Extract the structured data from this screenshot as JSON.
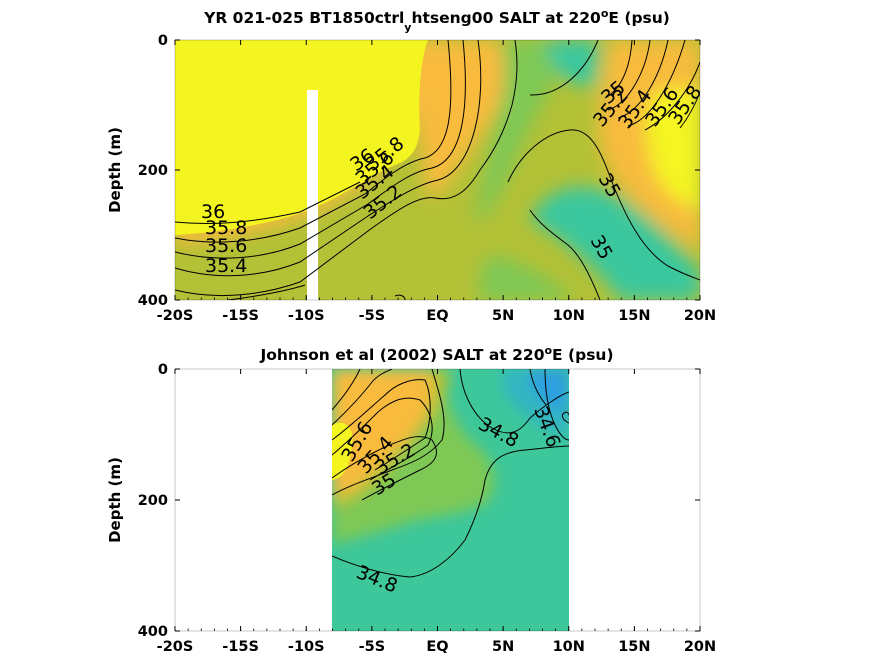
{
  "chart_data": [
    {
      "type": "contour",
      "title": "YR 021-025 BT1850ctrl",
      "title_subscript": "y",
      "title_rest": "htseng00 SALT at 220",
      "title_sup": "o",
      "title_end": "E (psu)",
      "ylabel": "Depth (m)",
      "x_ticks": [
        "-20S",
        "-15S",
        "-10S",
        "-5S",
        "EQ",
        "5N",
        "10N",
        "15N",
        "20N"
      ],
      "y_ticks": [
        "0",
        "200",
        "400"
      ],
      "xlim": [
        -20,
        20
      ],
      "ylim": [
        0,
        400
      ],
      "contour_labels": [
        "36",
        "35.8",
        "35.6",
        "35.4",
        "36",
        "35.8",
        "35.6",
        "35.4",
        "35.2",
        "35",
        "35.2",
        "35.4",
        "35.6",
        "35.8",
        "35",
        "35"
      ]
    },
    {
      "type": "contour",
      "title": "Johnson et al (2002) SALT at 220",
      "title_sup": "o",
      "title_end": "E (psu)",
      "ylabel": "Depth (m)",
      "x_ticks": [
        "-20S",
        "-15S",
        "-10S",
        "-5S",
        "EQ",
        "5N",
        "10N",
        "15N",
        "20N"
      ],
      "y_ticks": [
        "0",
        "200",
        "400"
      ],
      "xlim": [
        -20,
        20
      ],
      "ylim": [
        0,
        400
      ],
      "data_extent_x": [
        -8,
        10
      ],
      "contour_labels": [
        "35.6",
        "35.4",
        "35.2",
        "35",
        "34.8",
        "34.6",
        "34.8"
      ]
    }
  ],
  "colors": {
    "yellow": "#f4f520",
    "orange": "#f8bb3c",
    "olive": "#b4c234",
    "green": "#7ec854",
    "teal": "#3ac79e",
    "blue": "#2d9fe0"
  }
}
